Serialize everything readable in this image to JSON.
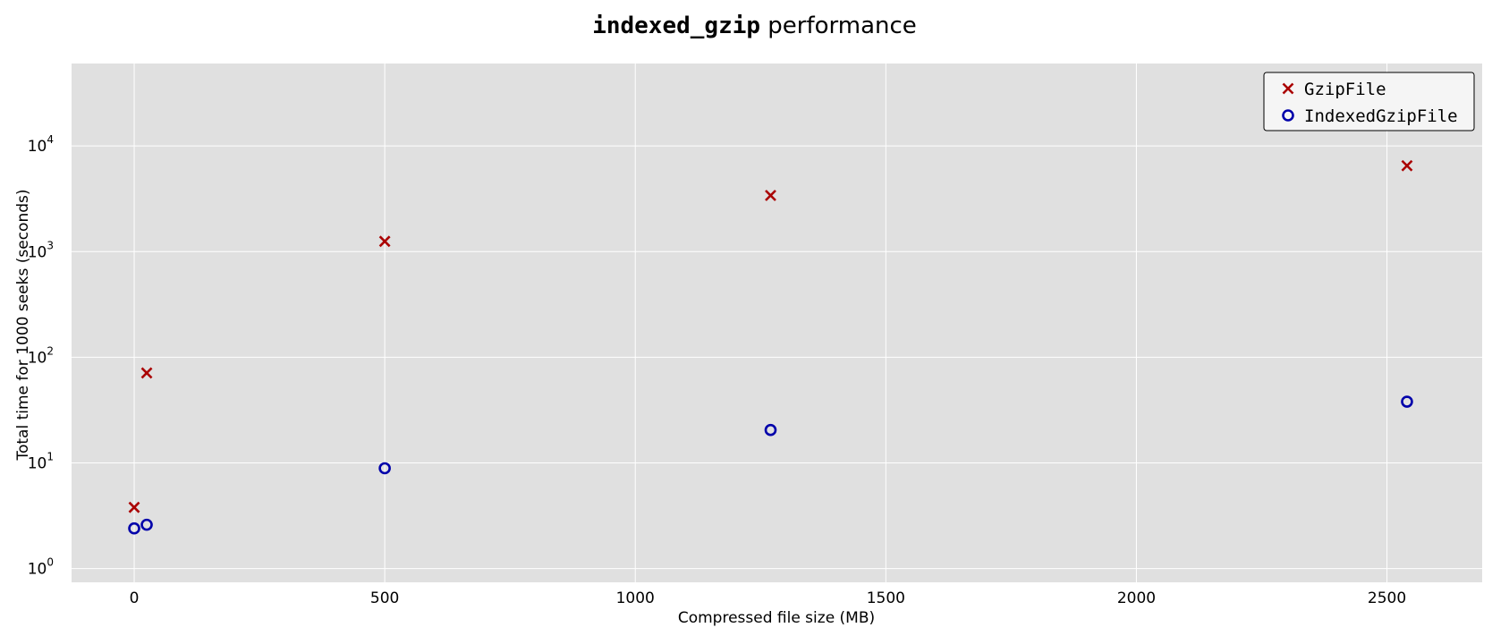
{
  "chart_data": {
    "type": "scatter",
    "title": {
      "code_part": "indexed_gzip",
      "text_part": " performance"
    },
    "xlabel": "Compressed file size (MB)",
    "ylabel": "Total time for 1000 seeks (seconds)",
    "xlim": [
      -125,
      2690
    ],
    "ylim_log10": [
      -0.13,
      4.78
    ],
    "y_scale": "log",
    "xticks": [
      0,
      500,
      1000,
      1500,
      2000,
      2500
    ],
    "xtick_labels": [
      "0",
      "500",
      "1000",
      "1500",
      "2000",
      "2500"
    ],
    "yticks_exponents": [
      0,
      1,
      2,
      3,
      4
    ],
    "ytick_base": "10",
    "grid": true,
    "legend_position": "top-right",
    "series": [
      {
        "name": "GzipFile",
        "marker": "x",
        "color": "#aa0000",
        "x": [
          0,
          25,
          500,
          1270,
          2540
        ],
        "y": [
          3.8,
          71,
          1250,
          3400,
          6500
        ]
      },
      {
        "name": "IndexedGzipFile",
        "marker": "o",
        "color": "#0000aa",
        "x": [
          0,
          25,
          500,
          1270,
          2540
        ],
        "y": [
          2.4,
          2.6,
          8.9,
          20.5,
          38
        ]
      }
    ]
  },
  "colors": {
    "plot_background": "#e0e0e0",
    "grid": "#ffffff",
    "legend_background": "#f5f5f5"
  }
}
